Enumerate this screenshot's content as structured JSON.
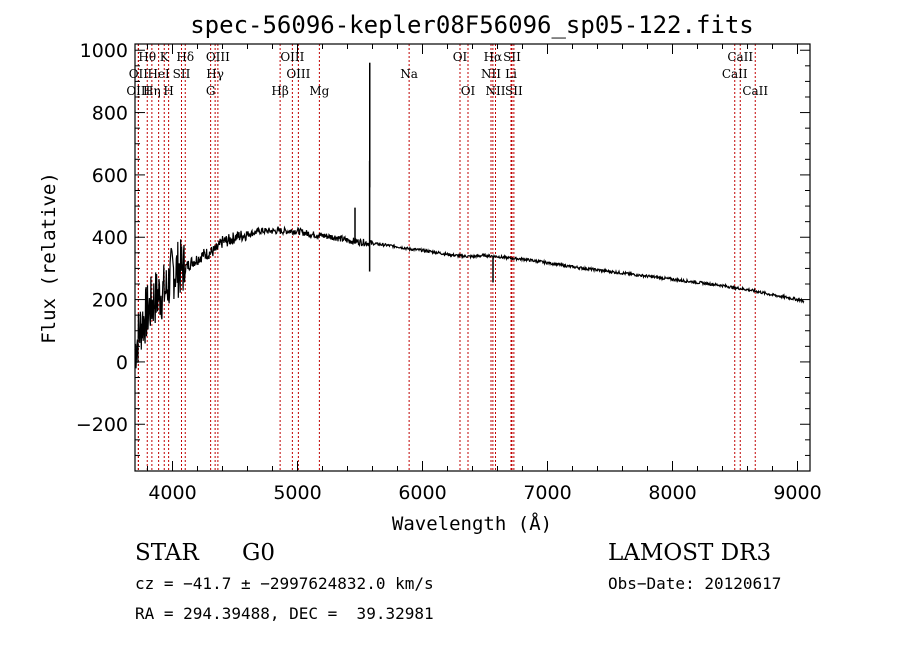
{
  "chart_data": {
    "type": "line",
    "title": "spec-56096-kepler08F56096_sp05-122.fits",
    "xlabel": "Wavelength (Å)",
    "ylabel": "Flux (relative)",
    "xlim": [
      3700,
      9100
    ],
    "ylim": [
      -350,
      1020
    ],
    "xticks": [
      4000,
      5000,
      6000,
      7000,
      8000,
      9000
    ],
    "yticks": [
      -200,
      0,
      200,
      400,
      600,
      800,
      1000
    ],
    "x": [
      3700,
      3750,
      3800,
      3850,
      3900,
      3950,
      4000,
      4050,
      4100,
      4150,
      4200,
      4250,
      4300,
      4350,
      4400,
      4450,
      4500,
      4600,
      4700,
      4800,
      4900,
      5000,
      5100,
      5200,
      5300,
      5400,
      5500,
      5600,
      5700,
      5800,
      5900,
      6000,
      6100,
      6200,
      6300,
      6400,
      6500,
      6600,
      6700,
      6800,
      7000,
      7200,
      7400,
      7600,
      7800,
      8000,
      8200,
      8400,
      8500,
      8600,
      8700,
      8800,
      8900,
      9000,
      9050
    ],
    "y": [
      40,
      120,
      160,
      200,
      220,
      230,
      290,
      300,
      300,
      320,
      330,
      345,
      350,
      360,
      385,
      390,
      400,
      410,
      420,
      420,
      420,
      420,
      410,
      405,
      400,
      390,
      385,
      380,
      375,
      370,
      362,
      358,
      352,
      345,
      340,
      338,
      342,
      338,
      333,
      330,
      318,
      305,
      295,
      285,
      275,
      265,
      255,
      245,
      238,
      232,
      224,
      215,
      208,
      200,
      195
    ],
    "spikes": [
      {
        "x": 5577,
        "y_top": 645,
        "y_bottom": 290
      },
      {
        "x": 5578,
        "y_top": 960,
        "y_bottom": 560
      },
      {
        "x": 5460,
        "y_top": 495,
        "y_bottom": 380
      },
      {
        "x": 6564,
        "y_top": 340,
        "y_bottom": 255
      }
    ],
    "lines": [
      {
        "label": "Hθ",
        "x": 3798,
        "row": 1
      },
      {
        "label": "OII",
        "x": 3727,
        "row": 2
      },
      {
        "label": "OIII",
        "x": 3727,
        "row": 3
      },
      {
        "label": "K",
        "x": 3934,
        "row": 1
      },
      {
        "label": "HeI",
        "x": 3889,
        "row": 2
      },
      {
        "label": "Hη",
        "x": 3835,
        "row": 3
      },
      {
        "label": "Hδ",
        "x": 4102,
        "row": 1
      },
      {
        "label": "SII",
        "x": 4072,
        "row": 2
      },
      {
        "label": "H",
        "x": 3969,
        "row": 3
      },
      {
        "label": "OIII",
        "x": 4363,
        "row": 1
      },
      {
        "label": "Hγ",
        "x": 4341,
        "row": 2
      },
      {
        "label": "G",
        "x": 4305,
        "row": 3
      },
      {
        "label": "OIII",
        "x": 4959,
        "row": 1
      },
      {
        "label": "OIII",
        "x": 5007,
        "row": 2
      },
      {
        "label": "Hβ",
        "x": 4861,
        "row": 3
      },
      {
        "label": "Mg",
        "x": 5175,
        "row": 3
      },
      {
        "label": "Na",
        "x": 5893,
        "row": 2
      },
      {
        "label": "OI",
        "x": 6300,
        "row": 1
      },
      {
        "label": "OI",
        "x": 6364,
        "row": 3
      },
      {
        "label": "Hα",
        "x": 6563,
        "row": 1
      },
      {
        "label": "SII",
        "x": 6716,
        "row": 1
      },
      {
        "label": "NII",
        "x": 6548,
        "row": 2
      },
      {
        "label": "Li",
        "x": 6708,
        "row": 2
      },
      {
        "label": "NII",
        "x": 6584,
        "row": 3
      },
      {
        "label": "SII",
        "x": 6731,
        "row": 3
      },
      {
        "label": "CaII",
        "x": 8542,
        "row": 1
      },
      {
        "label": "CaII",
        "x": 8498,
        "row": 2
      },
      {
        "label": "CaII",
        "x": 8662,
        "row": 3
      }
    ]
  },
  "info": {
    "object_class": "STAR",
    "subclass": "G0",
    "survey": "LAMOST DR3",
    "redshift": "cz = −41.7 ± −2997624832.0 km/s",
    "obs_date": "Obs−Date: 20120617",
    "coords": "RA = 294.39488, DEC =  39.32981"
  }
}
